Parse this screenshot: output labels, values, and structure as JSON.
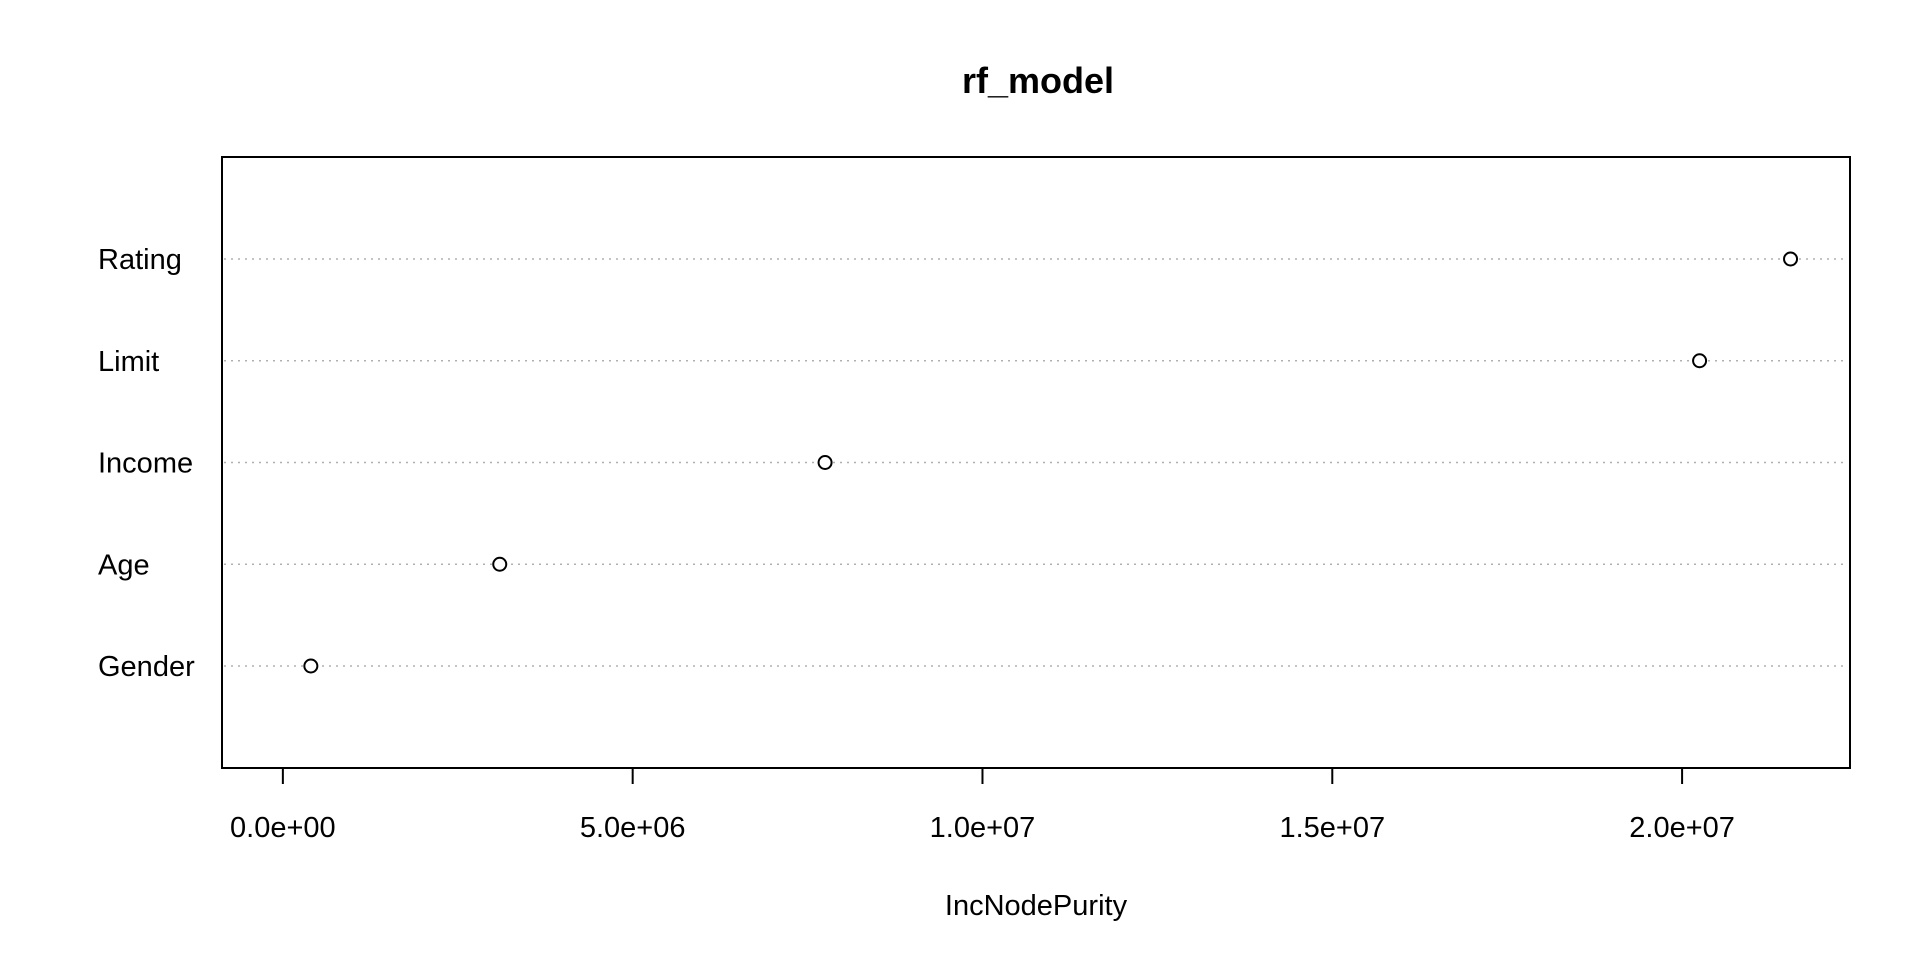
{
  "chart_data": {
    "type": "scatter",
    "title": "rf_model",
    "xlabel": "IncNodePurity",
    "ylabel": "",
    "categories": [
      "Gender",
      "Age",
      "Income",
      "Limit",
      "Rating"
    ],
    "values": [
      400000,
      3100000,
      7750000,
      20250000,
      21550000
    ],
    "xlim": [
      -870000,
      22400000
    ],
    "x_ticks": [
      0,
      5000000,
      10000000,
      15000000,
      20000000
    ],
    "x_tick_labels": [
      "0.0e+00",
      "5.0e+06",
      "1.0e+07",
      "1.5e+07",
      "2.0e+07"
    ],
    "grid": "dotted horizontal guide per category",
    "legend": "none",
    "colors": {
      "background": "#ffffff",
      "axis": "#000000",
      "guide": "#b0b0b0",
      "point_stroke": "#000000",
      "point_fill": "#ffffff"
    }
  }
}
